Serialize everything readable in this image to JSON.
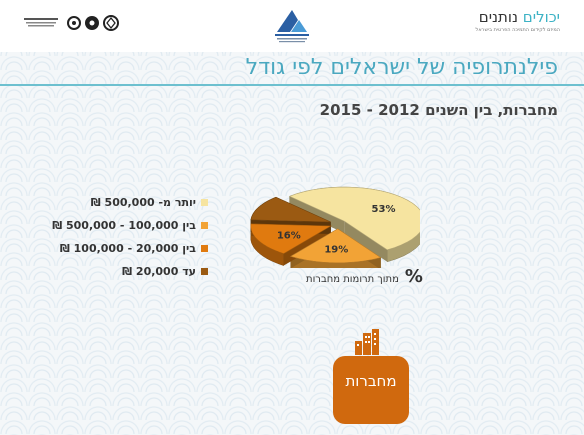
{
  "header": {
    "brand_name_prefix": "יכולים",
    "brand_name_suffix": "נותנים",
    "brand_tagline": "המיזם לקידום התמיכה הפרטית בישראל"
  },
  "title": "פילנתרופיה של ישראלים לפי גודל",
  "subtitle": "מחברות, בין השנים 2012 - 2015",
  "legend": [
    {
      "label": "יותר מ- 500,000 ₪",
      "color": "#f6e4a0"
    },
    {
      "label": "בין 100,000 - 500,000 ₪",
      "color": "#f2a336"
    },
    {
      "label": "בין 20,000 - 100,000 ₪",
      "color": "#e07a0f"
    },
    {
      "label": "עד 20,000 ₪",
      "color": "#9b5a12"
    }
  ],
  "axis_caption": {
    "symbol": "%",
    "text": "מתוך תרומות מחברות"
  },
  "section_button": "מחברות",
  "chart_data": {
    "type": "pie",
    "categories": [
      "יותר מ- 500,000 ₪",
      "בין 100,000 - 500,000 ₪",
      "בין 20,000 - 100,000 ₪",
      "עד 20,000 ₪"
    ],
    "values": [
      53,
      19,
      16,
      12
    ],
    "labels": [
      "53%",
      "19%",
      "16%",
      ""
    ],
    "colors": [
      "#f6e4a0",
      "#f2a336",
      "#e07a0f",
      "#9b5a12"
    ],
    "title": "מחברות, בין השנים 2012 - 2015",
    "legend_position": "left",
    "style": "3d-exploded"
  }
}
